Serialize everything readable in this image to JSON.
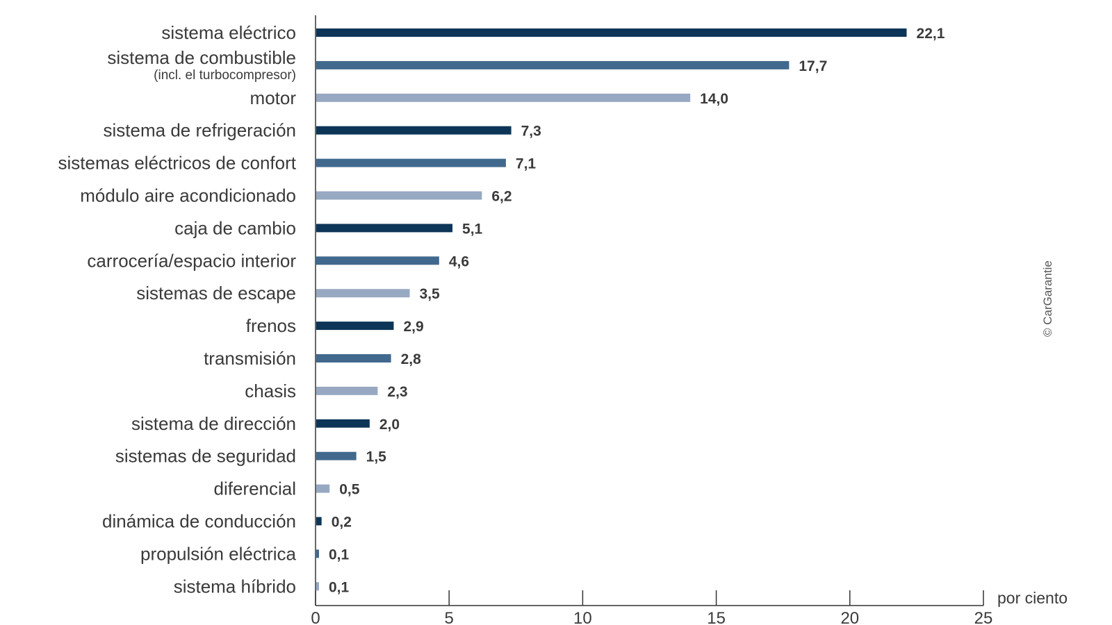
{
  "chart_data": {
    "type": "bar",
    "orientation": "horizontal",
    "categories": [
      "sistema eléctrico",
      "sistema de combustible",
      "motor",
      "sistema de refrigeración",
      "sistemas eléctricos de confort",
      "módulo aire acondicionado",
      "caja de cambio",
      "carrocería/espacio interior",
      "sistemas de escape",
      "frenos",
      "transmisión",
      "chasis",
      "sistema de dirección",
      "sistemas de seguridad",
      "diferencial",
      "dinámica de conducción",
      "propulsión eléctrica",
      "sistema híbrido"
    ],
    "category_notes": [
      "",
      "(incl. el turbocompresor)",
      "",
      "",
      "",
      "",
      "",
      "",
      "",
      "",
      "",
      "",
      "",
      "",
      "",
      "",
      "",
      ""
    ],
    "values": [
      22.1,
      17.7,
      14.0,
      7.3,
      7.1,
      6.2,
      5.1,
      4.6,
      3.5,
      2.9,
      2.8,
      2.3,
      2.0,
      1.5,
      0.5,
      0.2,
      0.1,
      0.1
    ],
    "value_labels": [
      "22,1",
      "17,7",
      "14,0",
      "7,3",
      "7,1",
      "6,2",
      "5,1",
      "4,6",
      "3,5",
      "2,9",
      "2,8",
      "2,3",
      "2,0",
      "1,5",
      "0,5",
      "0,2",
      "0,1",
      "0,1"
    ],
    "bar_colors": [
      "#0d3557",
      "#41698e",
      "#97a8c2"
    ],
    "xlim": [
      0,
      25
    ],
    "x_ticks": [
      0,
      5,
      10,
      15,
      20,
      25
    ],
    "x_tick_labels": [
      "0",
      "5",
      "10",
      "15",
      "20",
      "25"
    ],
    "x_unit_label": "por ciento",
    "grid": false,
    "legend": "none"
  },
  "credit": "© CarGarantie",
  "colors": {
    "dark": "#0d3557",
    "medium": "#41698e",
    "light": "#97a8c2",
    "text": "#3a3a3a",
    "axis": "#333333"
  }
}
